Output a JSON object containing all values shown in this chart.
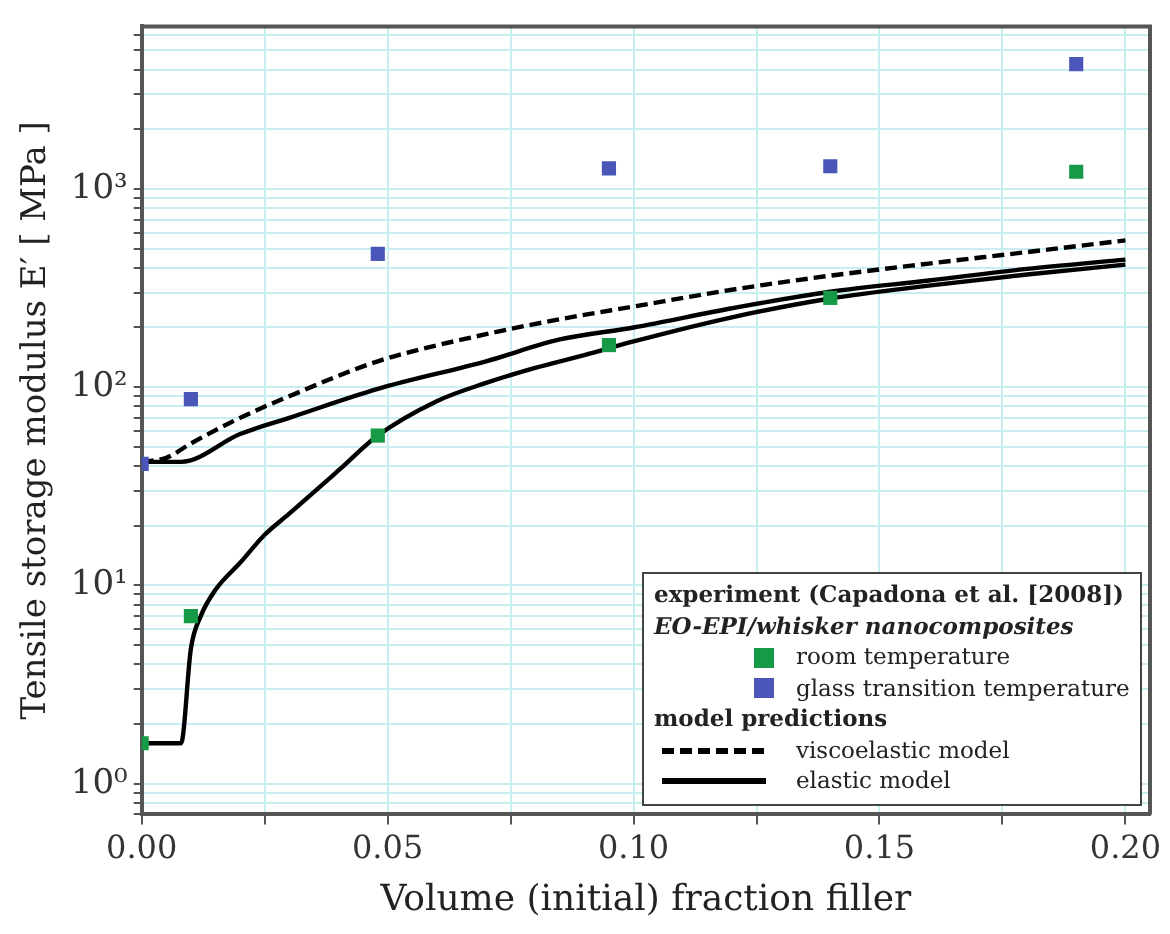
{
  "chart_data": {
    "type": "scatter",
    "xlabel": "Volume (initial) fraction filler",
    "ylabel": "Tensile storage modulus E′ [ MPa ]",
    "legend_title": "experiment (Capadona et al. [2008])",
    "legend": "bottom right",
    "log": "y",
    "grid": true,
    "marker": "square",
    "annotations": [
      "EO-EPI/whisker nanocomposites",
      "model predictions"
    ],
    "xlim": [
      0,
      0.205
    ],
    "xticks": [
      {
        "value": 0,
        "label": "0.00"
      },
      {
        "value": 0.025,
        "label": null
      },
      {
        "value": 0.05,
        "label": "0.05"
      },
      {
        "value": 0.075,
        "label": null
      },
      {
        "value": 0.1,
        "label": "0.10"
      },
      {
        "value": 0.125,
        "label": null
      },
      {
        "value": 0.15,
        "label": "0.15"
      },
      {
        "value": 0.175,
        "label": null
      },
      {
        "value": 0.2,
        "label": "0.20"
      }
    ],
    "ylim": [
      0.7,
      6600
    ],
    "yticks": [
      {
        "value": 0.7,
        "label": null
      },
      {
        "value": 0.8,
        "label": null
      },
      {
        "value": 0.9,
        "label": null
      },
      {
        "value": 1,
        "label": "10⁰"
      },
      {
        "value": 2,
        "label": null
      },
      {
        "value": 3,
        "label": null
      },
      {
        "value": 4,
        "label": null
      },
      {
        "value": 5,
        "label": null
      },
      {
        "value": 6,
        "label": null
      },
      {
        "value": 7,
        "label": null
      },
      {
        "value": 8,
        "label": null
      },
      {
        "value": 9,
        "label": null
      },
      {
        "value": 10,
        "label": "10¹"
      },
      {
        "value": 20,
        "label": null
      },
      {
        "value": 30,
        "label": null
      },
      {
        "value": 40,
        "label": null
      },
      {
        "value": 50,
        "label": null
      },
      {
        "value": 60,
        "label": null
      },
      {
        "value": 70,
        "label": null
      },
      {
        "value": 80,
        "label": null
      },
      {
        "value": 90,
        "label": null
      },
      {
        "value": 100,
        "label": "10²"
      },
      {
        "value": 200,
        "label": null
      },
      {
        "value": 300,
        "label": null
      },
      {
        "value": 400,
        "label": null
      },
      {
        "value": 500,
        "label": null
      },
      {
        "value": 600,
        "label": null
      },
      {
        "value": 700,
        "label": null
      },
      {
        "value": 800,
        "label": null
      },
      {
        "value": 900,
        "label": null
      },
      {
        "value": 1000,
        "label": "10³"
      },
      {
        "value": 2000,
        "label": null
      },
      {
        "value": 3000,
        "label": null
      },
      {
        "value": 4000,
        "label": null
      },
      {
        "value": 5000,
        "label": null
      },
      {
        "value": 6000,
        "label": null
      }
    ],
    "series": [
      {
        "name": "room temperature",
        "color": "#179a45",
        "x": [
          0,
          0.01,
          0.048,
          0.095,
          0.14,
          0.19
        ],
        "values": [
          1.6,
          7,
          57,
          163,
          282,
          1220
        ]
      },
      {
        "name": "glass transition temperature",
        "color": "#4a56b8",
        "x": [
          0,
          0.01,
          0.048,
          0.095,
          0.14,
          0.19
        ],
        "values": [
          41,
          87,
          470,
          1270,
          1300,
          4260
        ]
      },
      {
        "name": "viscoelastic model",
        "type": "line",
        "marker": "none",
        "line_style": "dashed",
        "color": "#000000",
        "x": [
          0,
          0.005,
          0.01,
          0.02,
          0.03,
          0.048,
          0.07,
          0.085,
          0.1,
          0.12,
          0.14,
          0.16,
          0.18,
          0.2
        ],
        "values": [
          42,
          44,
          52,
          70,
          90,
          135,
          185,
          220,
          255,
          310,
          365,
          420,
          480,
          550
        ]
      },
      {
        "name": "elastic model",
        "type": "line",
        "marker": "none",
        "line_style": "solid",
        "color": "#000000",
        "x": [
          0,
          0.008,
          0.02,
          0.03,
          0.048,
          0.07,
          0.085,
          0.1,
          0.12,
          0.14,
          0.16,
          0.18,
          0.2
        ],
        "values": [
          42,
          42,
          58,
          70,
          98,
          135,
          174,
          200,
          250,
          303,
          345,
          395,
          440
        ]
      },
      {
        "type": "line",
        "marker": "none",
        "line_style": "solid",
        "color": "#000000",
        "x": [
          0,
          0.008,
          0.01,
          0.012,
          0.015,
          0.02,
          0.025,
          0.03,
          0.04,
          0.048,
          0.06,
          0.07,
          0.08,
          0.09,
          0.1,
          0.12,
          0.14,
          0.16,
          0.18,
          0.2
        ],
        "values": [
          1.6,
          1.6,
          4.8,
          7,
          9.5,
          13,
          18,
          23,
          38,
          57,
          85,
          105,
          125,
          145,
          170,
          225,
          280,
          325,
          370,
          415
        ]
      }
    ]
  }
}
